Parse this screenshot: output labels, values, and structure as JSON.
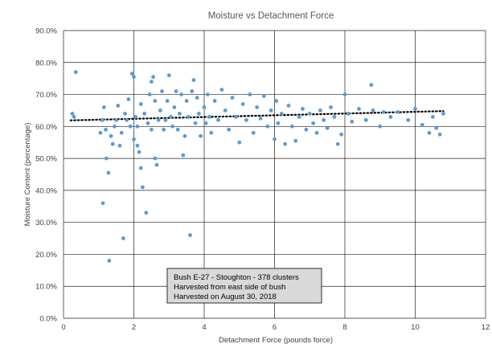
{
  "chart_data": {
    "type": "scatter",
    "title": "Moisture vs Detachment Force",
    "xlabel": "Detachment Force (pounds force)",
    "ylabel": "Moisture Content (percentage)",
    "xlim": [
      0,
      12
    ],
    "ylim": [
      0,
      0.9
    ],
    "x_ticks": [
      0,
      2,
      4,
      6,
      8,
      10,
      12
    ],
    "x_tick_labels": [
      "0",
      "2",
      "4",
      "6",
      "8",
      "10",
      "12"
    ],
    "y_ticks": [
      0,
      0.1,
      0.2,
      0.3,
      0.4,
      0.5,
      0.6,
      0.7,
      0.8,
      0.9
    ],
    "y_tick_labels": [
      "0.0%",
      "10.0%",
      "20.0%",
      "30.0%",
      "40.0%",
      "50.0%",
      "60.0%",
      "70.0%",
      "80.0%",
      "90.0%"
    ],
    "grid": true,
    "point_color": "#5B9BD5",
    "trendline": {
      "style": "dotted",
      "color": "#000000",
      "x": [
        0.2,
        10.8
      ],
      "y": [
        0.619,
        0.648
      ]
    },
    "annotation": [
      "Bush E-27 - Stoughton - 378 clusters",
      "Harvested from east side of bush",
      "Harvested on August 30, 2018"
    ],
    "annotation_fill": "#D9D9D9",
    "points": [
      [
        0.25,
        0.64
      ],
      [
        0.3,
        0.63
      ],
      [
        0.35,
        0.77
      ],
      [
        1.05,
        0.58
      ],
      [
        1.1,
        0.62
      ],
      [
        1.12,
        0.36
      ],
      [
        1.15,
        0.66
      ],
      [
        1.2,
        0.59
      ],
      [
        1.22,
        0.5
      ],
      [
        1.28,
        0.455
      ],
      [
        1.3,
        0.18
      ],
      [
        1.35,
        0.57
      ],
      [
        1.4,
        0.545
      ],
      [
        1.45,
        0.6
      ],
      [
        1.5,
        0.62
      ],
      [
        1.55,
        0.665
      ],
      [
        1.6,
        0.54
      ],
      [
        1.65,
        0.58
      ],
      [
        1.7,
        0.25
      ],
      [
        1.75,
        0.64
      ],
      [
        1.8,
        0.62
      ],
      [
        1.85,
        0.685
      ],
      [
        1.9,
        0.6
      ],
      [
        1.95,
        0.765
      ],
      [
        2.0,
        0.755
      ],
      [
        2.0,
        0.56
      ],
      [
        2.05,
        0.63
      ],
      [
        2.1,
        0.54
      ],
      [
        2.1,
        0.6
      ],
      [
        2.15,
        0.52
      ],
      [
        2.2,
        0.47
      ],
      [
        2.2,
        0.67
      ],
      [
        2.25,
        0.41
      ],
      [
        2.3,
        0.64
      ],
      [
        2.35,
        0.33
      ],
      [
        2.4,
        0.61
      ],
      [
        2.45,
        0.7
      ],
      [
        2.5,
        0.59
      ],
      [
        2.5,
        0.74
      ],
      [
        2.55,
        0.755
      ],
      [
        2.6,
        0.68
      ],
      [
        2.6,
        0.5
      ],
      [
        2.65,
        0.48
      ],
      [
        2.7,
        0.62
      ],
      [
        2.75,
        0.65
      ],
      [
        2.8,
        0.71
      ],
      [
        2.85,
        0.59
      ],
      [
        2.9,
        0.62
      ],
      [
        2.95,
        0.68
      ],
      [
        3.0,
        0.76
      ],
      [
        3.05,
        0.63
      ],
      [
        3.1,
        0.6
      ],
      [
        3.15,
        0.66
      ],
      [
        3.2,
        0.71
      ],
      [
        3.25,
        0.59
      ],
      [
        3.3,
        0.64
      ],
      [
        3.35,
        0.7
      ],
      [
        3.4,
        0.51
      ],
      [
        3.45,
        0.57
      ],
      [
        3.5,
        0.68
      ],
      [
        3.55,
        0.63
      ],
      [
        3.6,
        0.26
      ],
      [
        3.65,
        0.71
      ],
      [
        3.7,
        0.745
      ],
      [
        3.75,
        0.61
      ],
      [
        3.8,
        0.69
      ],
      [
        3.85,
        0.64
      ],
      [
        3.9,
        0.57
      ],
      [
        4.0,
        0.66
      ],
      [
        4.05,
        0.61
      ],
      [
        4.1,
        0.7
      ],
      [
        4.15,
        0.63
      ],
      [
        4.2,
        0.58
      ],
      [
        4.3,
        0.68
      ],
      [
        4.4,
        0.62
      ],
      [
        4.5,
        0.715
      ],
      [
        4.6,
        0.65
      ],
      [
        4.7,
        0.59
      ],
      [
        4.8,
        0.69
      ],
      [
        4.9,
        0.63
      ],
      [
        5.0,
        0.55
      ],
      [
        5.1,
        0.67
      ],
      [
        5.2,
        0.62
      ],
      [
        5.3,
        0.7
      ],
      [
        5.4,
        0.58
      ],
      [
        5.5,
        0.66
      ],
      [
        5.6,
        0.625
      ],
      [
        5.7,
        0.695
      ],
      [
        5.8,
        0.6
      ],
      [
        5.9,
        0.65
      ],
      [
        6.0,
        0.56
      ],
      [
        6.05,
        0.68
      ],
      [
        6.1,
        0.61
      ],
      [
        6.2,
        0.64
      ],
      [
        6.3,
        0.545
      ],
      [
        6.4,
        0.665
      ],
      [
        6.5,
        0.6
      ],
      [
        6.6,
        0.555
      ],
      [
        6.7,
        0.63
      ],
      [
        6.8,
        0.655
      ],
      [
        6.9,
        0.59
      ],
      [
        7.0,
        0.64
      ],
      [
        7.1,
        0.61
      ],
      [
        7.2,
        0.58
      ],
      [
        7.3,
        0.65
      ],
      [
        7.4,
        0.62
      ],
      [
        7.5,
        0.595
      ],
      [
        7.6,
        0.66
      ],
      [
        7.7,
        0.63
      ],
      [
        7.8,
        0.545
      ],
      [
        7.9,
        0.575
      ],
      [
        8.0,
        0.7
      ],
      [
        8.1,
        0.64
      ],
      [
        8.2,
        0.615
      ],
      [
        8.4,
        0.655
      ],
      [
        8.6,
        0.62
      ],
      [
        8.75,
        0.73
      ],
      [
        8.8,
        0.65
      ],
      [
        9.0,
        0.6
      ],
      [
        9.1,
        0.645
      ],
      [
        9.3,
        0.63
      ],
      [
        9.5,
        0.645
      ],
      [
        9.8,
        0.62
      ],
      [
        10.0,
        0.655
      ],
      [
        10.2,
        0.605
      ],
      [
        10.4,
        0.58
      ],
      [
        10.5,
        0.63
      ],
      [
        10.6,
        0.595
      ],
      [
        10.7,
        0.575
      ],
      [
        10.8,
        0.64
      ]
    ]
  }
}
